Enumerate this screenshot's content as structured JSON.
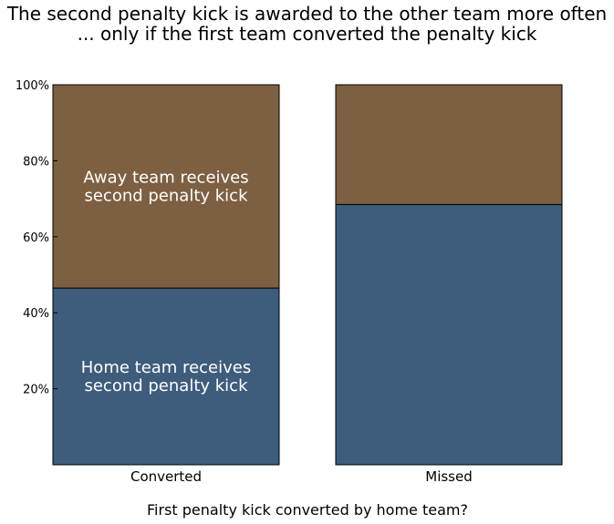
{
  "title": {
    "line1": "The second penalty kick is awarded to the other team more often",
    "line2": "... only if the first team converted the penalty kick"
  },
  "chart_data": {
    "type": "bar",
    "stacked": true,
    "categories": [
      "Converted",
      "Missed"
    ],
    "series": [
      {
        "name": "Home team receives second penalty kick",
        "values": [
          46.5,
          68.5
        ],
        "color": "#3e5d7d"
      },
      {
        "name": "Away team receives second penalty kick",
        "values": [
          53.5,
          31.5
        ],
        "color": "#7d6041"
      }
    ],
    "segment_labels": [
      [
        "Home team receives",
        "second penalty kick"
      ],
      [
        "Away team receives",
        "second penalty kick"
      ]
    ],
    "xlabel": "First penalty kick converted by home team?",
    "ylabel": "",
    "ylim": [
      0,
      100
    ],
    "yticks": [
      20,
      40,
      60,
      80,
      100
    ],
    "ytick_labels": [
      "20%",
      "40%",
      "60%",
      "80%",
      "100%"
    ],
    "grid": false,
    "legend": "none"
  }
}
